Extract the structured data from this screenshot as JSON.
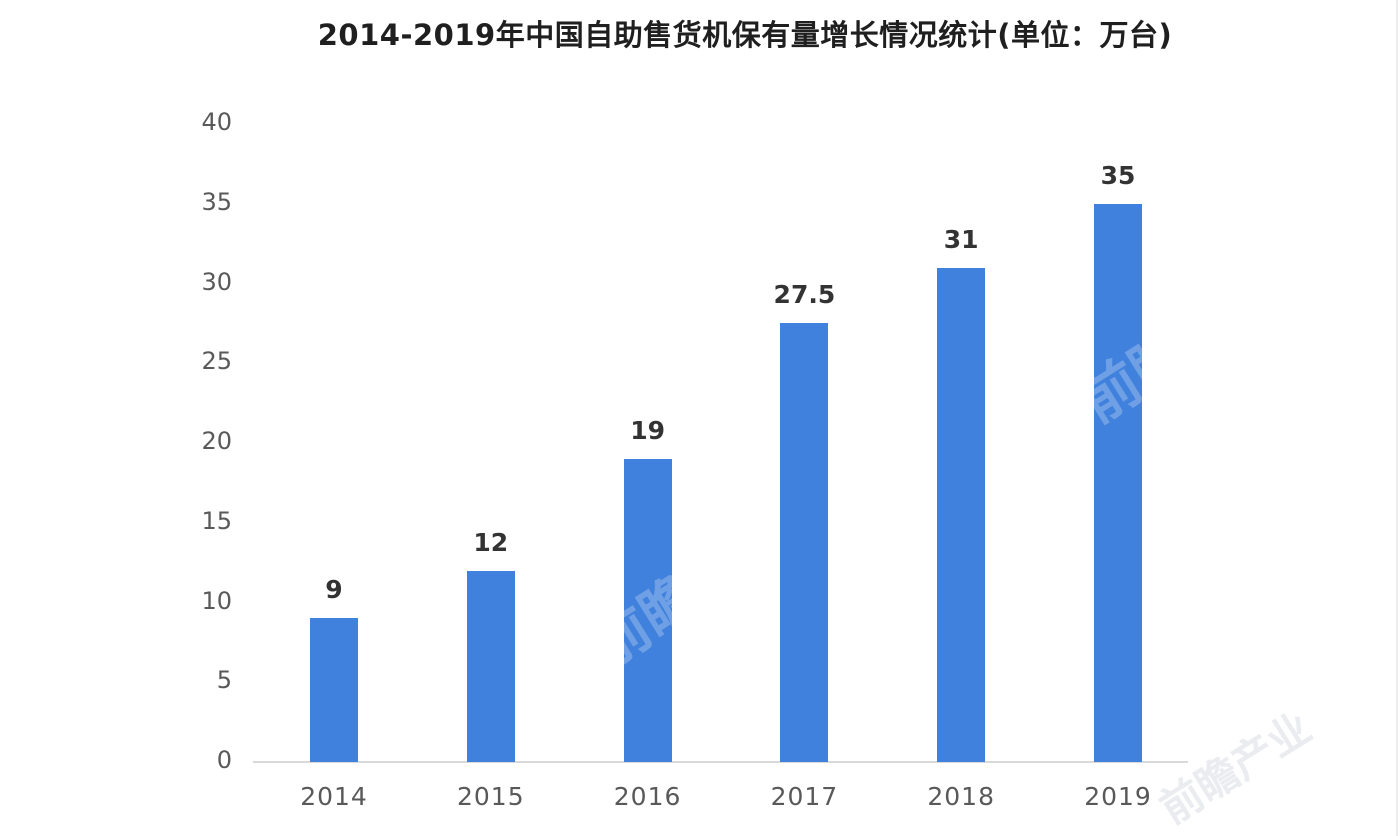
{
  "page": {
    "background": "#ffffff",
    "right_border_color": "#ededed"
  },
  "title": "2014-2019年中国自助售货机保有量增长情况统计(单位：万台)",
  "watermark": {
    "text": "前瞻",
    "text_small": "前瞻产业"
  },
  "chart_data": {
    "type": "bar",
    "title": "2014-2019年中国自助售货机保有量增长情况统计(单位：万台)",
    "categories": [
      "2014",
      "2015",
      "2016",
      "2017",
      "2018",
      "2019"
    ],
    "values": [
      9,
      12,
      19,
      27.5,
      31,
      35
    ],
    "value_labels": [
      "9",
      "12",
      "19",
      "27.5",
      "31",
      "35"
    ],
    "unit": "万台",
    "xlabel": "",
    "ylabel": "",
    "ylim": [
      0,
      40
    ],
    "yticks": [
      0,
      5,
      10,
      15,
      20,
      25,
      30,
      35,
      40
    ],
    "bar_color": "#3f81dc",
    "value_label_color": "#333333",
    "tick_label_color": "#595959",
    "axis_line_color": "#d9d9d9",
    "grid": false,
    "legend": "none"
  }
}
